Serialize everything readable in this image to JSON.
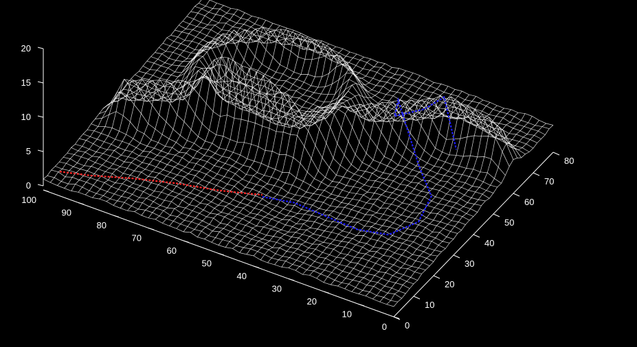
{
  "chart_data": {
    "type": "surface",
    "title": "",
    "xlabel": "",
    "ylabel": "",
    "zlabel": "",
    "grid": false,
    "background": "#000000",
    "colors": {
      "surface": "#ffffff",
      "path_red": "#ff2a2a",
      "path_blue": "#1e1eff",
      "axes": "#ffffff"
    },
    "xlim": [
      0,
      100
    ],
    "ylim": [
      0,
      80
    ],
    "zlim": [
      0,
      20
    ],
    "x_ticks": [
      "0",
      "10",
      "20",
      "30",
      "40",
      "50",
      "60",
      "70",
      "80",
      "90",
      "100"
    ],
    "y_ticks": [
      "0",
      "10",
      "20",
      "30",
      "40",
      "50",
      "60",
      "70",
      "80"
    ],
    "z_ticks": [
      "0",
      "5",
      "10",
      "15",
      "20"
    ],
    "surface": {
      "base_height": 1.5,
      "features": [
        {
          "kind": "ridge_curve",
          "description_points": [
            [
              93,
              30
            ],
            [
              72,
              40
            ],
            [
              48,
              38
            ],
            [
              38,
              50
            ],
            [
              20,
              63
            ],
            [
              5,
              60
            ]
          ],
          "height": 6
        },
        {
          "kind": "basin_rim",
          "center": [
            65,
            55
          ],
          "height": 5
        }
      ]
    },
    "paths": [
      {
        "color": "red",
        "points": [
          [
            97,
            3
          ],
          [
            90,
            6
          ],
          [
            80,
            10
          ],
          [
            70,
            14
          ],
          [
            60,
            17
          ],
          [
            55,
            20
          ],
          [
            50,
            22
          ]
        ]
      },
      {
        "color": "blue",
        "points": [
          [
            50,
            22
          ],
          [
            42,
            24
          ],
          [
            32,
            22
          ],
          [
            22,
            20
          ],
          [
            14,
            22
          ],
          [
            10,
            30
          ],
          [
            12,
            40
          ],
          [
            20,
            48
          ],
          [
            30,
            55
          ],
          [
            35,
            62
          ],
          [
            30,
            68
          ],
          [
            22,
            64
          ],
          [
            14,
            56
          ]
        ]
      }
    ]
  }
}
